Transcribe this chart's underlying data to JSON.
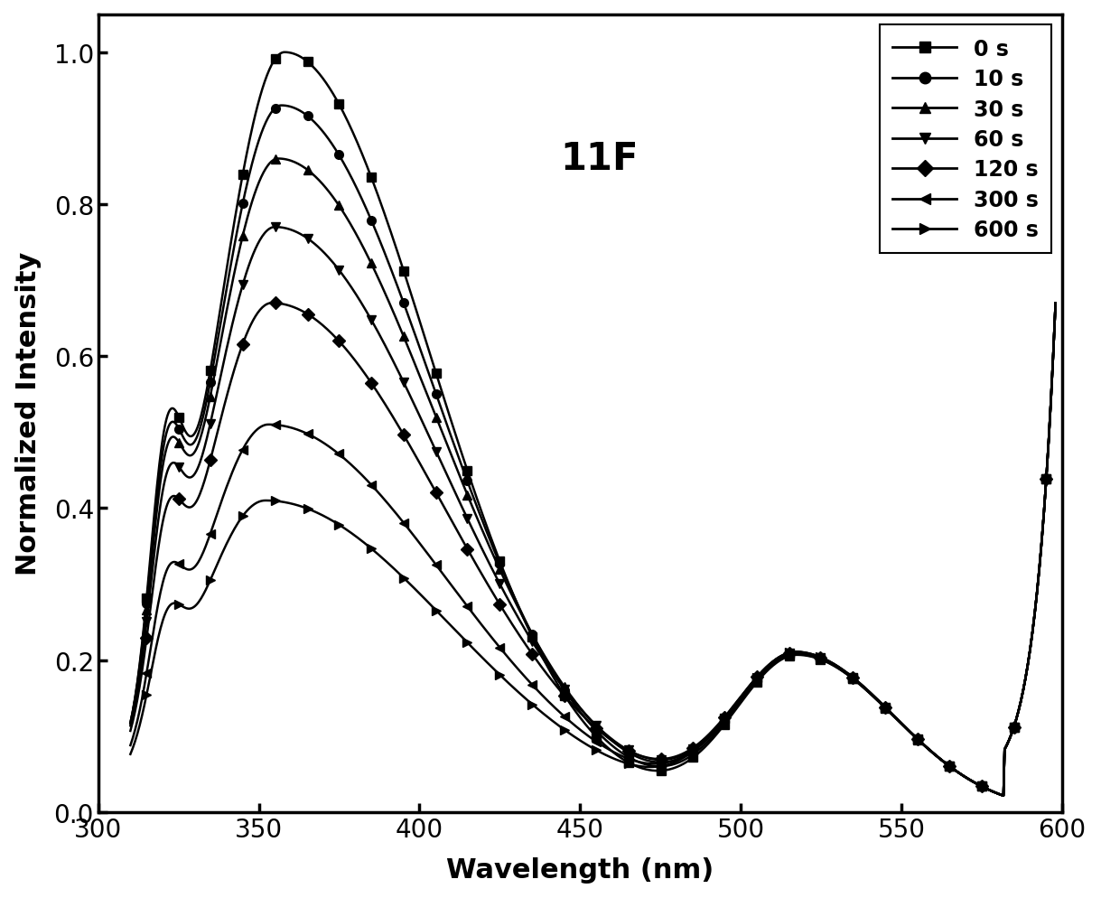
{
  "title": "11F",
  "xlabel": "Wavelength (nm)",
  "ylabel": "Normalized Intensity",
  "xlim": [
    300,
    600
  ],
  "ylim": [
    0.0,
    1.05
  ],
  "yticks": [
    0.0,
    0.2,
    0.4,
    0.6,
    0.8,
    1.0
  ],
  "xticks": [
    300,
    350,
    400,
    450,
    500,
    550,
    600
  ],
  "series": [
    {
      "label": "0 s",
      "peak": 1.0,
      "peak_nm": 358,
      "marker": "s"
    },
    {
      "label": "10 s",
      "peak": 0.93,
      "peak_nm": 357,
      "marker": "o"
    },
    {
      "label": "30 s",
      "peak": 0.86,
      "peak_nm": 356,
      "marker": "^"
    },
    {
      "label": "60 s",
      "peak": 0.77,
      "peak_nm": 355,
      "marker": "v"
    },
    {
      "label": "120 s",
      "peak": 0.67,
      "peak_nm": 354,
      "marker": "D"
    },
    {
      "label": "300 s",
      "peak": 0.51,
      "peak_nm": 353,
      "marker": "<"
    },
    {
      "label": "600 s",
      "peak": 0.41,
      "peak_nm": 352,
      "marker": ">"
    }
  ],
  "line_color": "#000000",
  "background_color": "#ffffff",
  "title_fontsize": 30,
  "label_fontsize": 22,
  "tick_fontsize": 20,
  "legend_fontsize": 17
}
